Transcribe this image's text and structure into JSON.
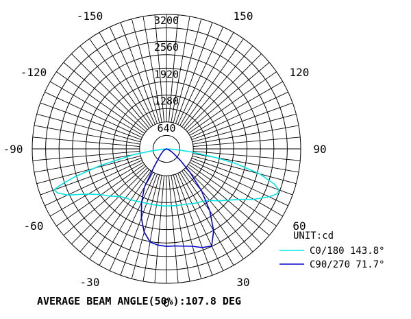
{
  "chart_data": {
    "type": "polar",
    "unit_label": "UNIT:cd",
    "rings": [
      640,
      1280,
      1920,
      2560,
      3200
    ],
    "r_max": 3200,
    "angle_labels": [
      "0",
      "30",
      "60",
      "90",
      "120",
      "150",
      "-150",
      "-120",
      "-90",
      "-60",
      "-30"
    ],
    "angle_values": [
      0,
      30,
      60,
      90,
      120,
      150,
      -150,
      -120,
      -90,
      -60,
      -30
    ],
    "series": [
      {
        "name": "C0/180 143.8°",
        "color": "#00e5e5",
        "angles": [
          -90,
          -85,
          -82,
          -80,
          -76,
          -73,
          -71,
          -70,
          -68,
          -65,
          -60,
          -55,
          -50,
          -45,
          -40,
          -35,
          -30,
          -25,
          -20,
          -15,
          -10,
          -5,
          0,
          5,
          10,
          15,
          20,
          25,
          30,
          35,
          40,
          45,
          50,
          55,
          60,
          65,
          68,
          70,
          72,
          75,
          78,
          80,
          83,
          86,
          90
        ],
        "values": [
          0,
          100,
          400,
          800,
          1600,
          2300,
          2700,
          2850,
          2800,
          2600,
          2150,
          1900,
          1750,
          1600,
          1520,
          1480,
          1440,
          1400,
          1380,
          1370,
          1360,
          1360,
          1360,
          1360,
          1370,
          1380,
          1400,
          1440,
          1480,
          1520,
          1600,
          1750,
          1900,
          2100,
          2400,
          2700,
          2850,
          2850,
          2700,
          2300,
          1700,
          1200,
          600,
          200,
          0
        ]
      },
      {
        "name": "C90/270 71.7°",
        "color": "#0000cc",
        "angles": [
          -90,
          -60,
          -45,
          -35,
          -30,
          -25,
          -20,
          -15,
          -10,
          -5,
          0,
          5,
          10,
          15,
          20,
          25,
          30,
          35,
          40,
          45,
          50,
          55,
          60,
          70,
          90
        ],
        "values": [
          0,
          80,
          200,
          500,
          1050,
          1400,
          1750,
          2050,
          2250,
          2300,
          2320,
          2320,
          2350,
          2400,
          2500,
          2550,
          2250,
          1800,
          1300,
          800,
          450,
          250,
          150,
          50,
          0
        ]
      }
    ]
  },
  "footer": {
    "text": "AVERAGE BEAM ANGLE(50%):107.8 DEG"
  }
}
